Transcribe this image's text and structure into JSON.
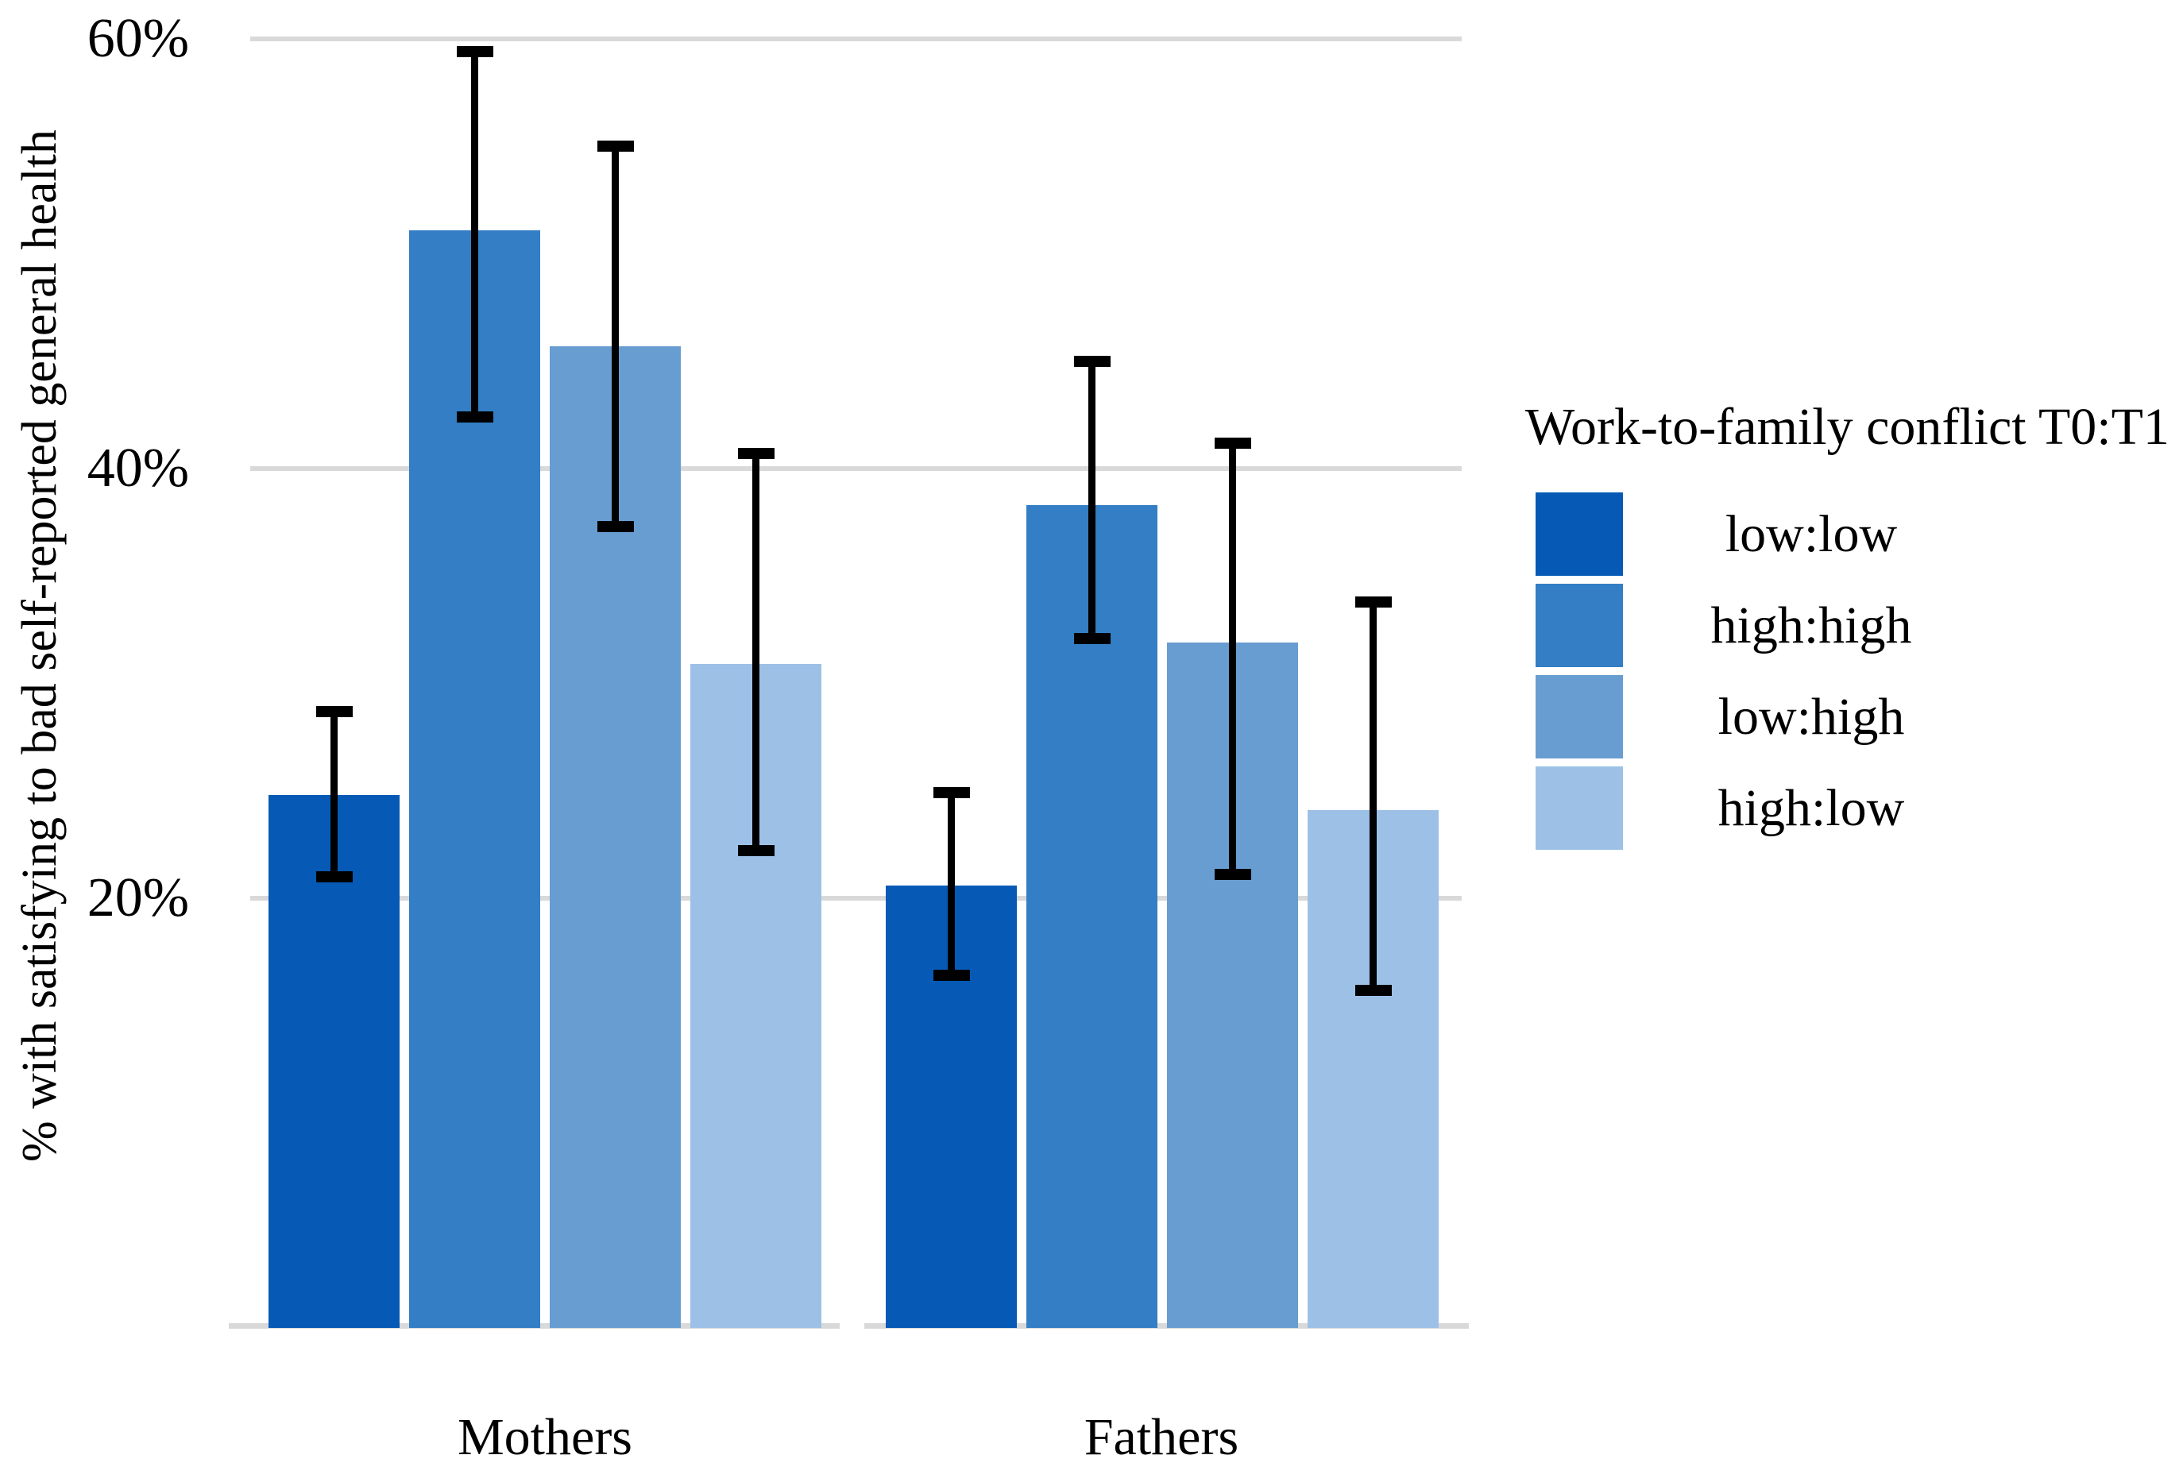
{
  "figure": {
    "background": "#ffffff",
    "text_color": "#000000"
  },
  "chart_data": {
    "type": "bar",
    "title": "",
    "xlabel": "",
    "ylabel": "% with satisfying to bad self-reported general health",
    "categories": [
      "Mothers",
      "Fathers"
    ],
    "y_axis": {
      "tick_values": [
        20,
        40,
        60
      ],
      "tick_labels": [
        "20%",
        "40%",
        "60%"
      ],
      "range": [
        0,
        62
      ],
      "unit": "percent",
      "gridlines": true,
      "gridline_color": "#d9d9d9",
      "axis_line_color": "#d9d9d9"
    },
    "legend": {
      "title": "Work-to-family conflict T0:T1",
      "position": "right"
    },
    "error_bars": true,
    "error_bar_color": "#000000",
    "series": [
      {
        "name": "low:low",
        "color": "#065ab6",
        "values": [
          24.8,
          20.6
        ],
        "ci_low": [
          21.0,
          16.4
        ],
        "ci_high": [
          28.7,
          24.9
        ]
      },
      {
        "name": "high:high",
        "color": "#337ec4",
        "values": [
          51.1,
          38.3
        ],
        "ci_low": [
          42.4,
          32.1
        ],
        "ci_high": [
          59.4,
          45.0
        ]
      },
      {
        "name": "low:high",
        "color": "#689dd2",
        "values": [
          45.7,
          31.9
        ],
        "ci_low": [
          37.3,
          21.1
        ],
        "ci_high": [
          55.0,
          41.2
        ]
      },
      {
        "name": "high:low",
        "color": "#9dc1e6",
        "values": [
          30.9,
          24.1
        ],
        "ci_low": [
          22.2,
          15.7
        ],
        "ci_high": [
          40.7,
          33.8
        ]
      }
    ]
  }
}
